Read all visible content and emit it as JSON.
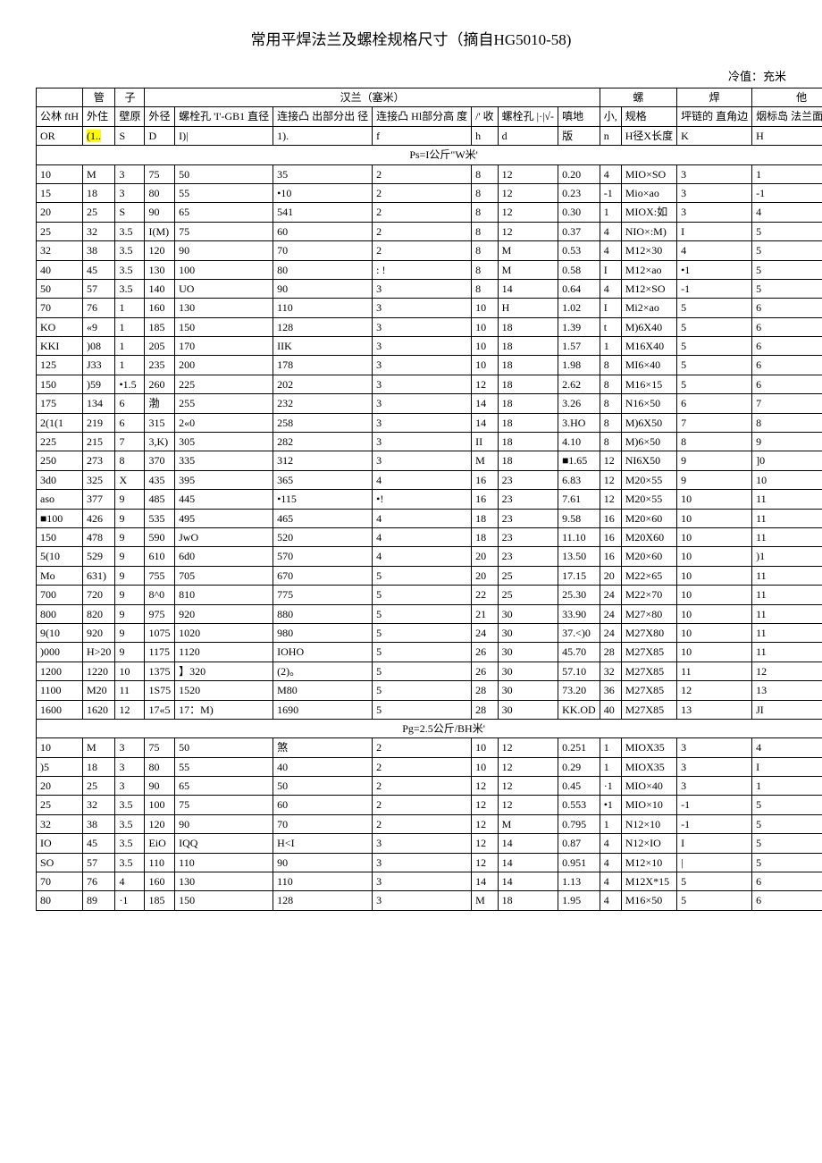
{
  "title": "常用平焊法兰及螺栓规格尺寸（摘自HG5010-58)",
  "unit_label": "冷值：充米",
  "group_headers": {
    "g1": "管",
    "g2": "子",
    "g3": "汉兰（塞米）",
    "g4": "螺",
    "g5": "焊",
    "g6": "他"
  },
  "col_headers": {
    "c1": "公林\nftH",
    "c2": "外住",
    "c3": "壁原",
    "c4": "外径",
    "c5": "螺栓孔\n'I'-GB1\n直径",
    "c6": "连接凸\n出部分出\n径",
    "c7": "连接凸\nHl部分高\n度",
    "c8": "/' 收",
    "c9": "螺栓孔\n|·|√-",
    "c10": "嗔地",
    "c11": "小,",
    "c12": "规格",
    "c13": "坪链的\n直角边",
    "c14": "烟标岛\n法兰面距\n离"
  },
  "sym_headers": {
    "s1": "OR",
    "s2": "(1..",
    "s3": "S",
    "s4": "D",
    "s5": "I)|",
    "s6": "1).",
    "s7": "f",
    "s8": "h",
    "s9": "d",
    "s10": "版",
    "s11": "n",
    "s12": "H径X长度",
    "s13": "K",
    "s14": "H"
  },
  "section1": "Ps=I公斤\"W米'",
  "section2": "Pg=2.5公斤/BH米'",
  "rows1": [
    [
      "10",
      "M",
      "3",
      "75",
      "50",
      "35",
      "2",
      "8",
      "12",
      "0.20",
      "4",
      "MIO×SO",
      "3",
      "1"
    ],
    [
      "15",
      "18",
      "3",
      "80",
      "55",
      "•10",
      "2",
      "8",
      "12",
      "0.23",
      "-1",
      "Mio×ao",
      "3",
      "-1"
    ],
    [
      "20",
      "25",
      "S",
      "90",
      "65",
      "541",
      "2",
      "8",
      "12",
      "0.30",
      "1",
      "MIOX:如",
      "3",
      "4"
    ],
    [
      "25",
      "32",
      "3.5",
      "I(M)",
      "75",
      "60",
      "2",
      "8",
      "12",
      "0.37",
      "4",
      "NIO×:M)",
      "I",
      "5"
    ],
    [
      "32",
      "38",
      "3.5",
      "120",
      "90",
      "70",
      "2",
      "8",
      "M",
      "0.53",
      "4",
      "M12×30",
      "4",
      "5"
    ],
    [
      "40",
      "45",
      "3.5",
      "130",
      "100",
      "80",
      ": !",
      "8",
      "M",
      "0.58",
      "I",
      "M12×ao",
      "•1",
      "5"
    ],
    [
      "50",
      "57",
      "3.5",
      "140",
      "UO",
      "90",
      "3",
      "8",
      "14",
      "0.64",
      "4",
      "M12×SO",
      "-1",
      "5"
    ],
    [
      "70",
      "76",
      "1",
      "160",
      "130",
      "110",
      "3",
      "10",
      "H",
      "1.02",
      "I",
      "Mi2×ao",
      "5",
      "6"
    ],
    [
      "KO",
      "«9",
      "1",
      "185",
      "150",
      "128",
      "3",
      "10",
      "18",
      "1.39",
      "t",
      "M)6X40",
      "5",
      "6"
    ],
    [
      "KKI",
      ")08",
      "1",
      "205",
      "170",
      "IIK",
      "3",
      "10",
      "18",
      "1.57",
      "1",
      "M16X40",
      "5",
      "6"
    ],
    [
      "125",
      "J33",
      "1",
      "235",
      "200",
      "178",
      "3",
      "10",
      "18",
      "1.98",
      "8",
      "MI6×40",
      "5",
      "6"
    ],
    [
      "150",
      ")59",
      "•1.5",
      "260",
      "225",
      "202",
      "3",
      "12",
      "18",
      "2.62",
      "8",
      "M16×15",
      "5",
      "6"
    ],
    [
      "175",
      "134",
      "6",
      "渤",
      "255",
      "232",
      "3",
      "14",
      "18",
      "3.26",
      "8",
      "N16×50",
      "6",
      "7"
    ],
    [
      "2(1(1",
      "219",
      "6",
      "315",
      "2«0",
      "258",
      "3",
      "14",
      "18",
      "3.HO",
      "8",
      "M)6X50",
      "7",
      "8"
    ],
    [
      "225",
      "215",
      "7",
      "3,K)",
      "305",
      "282",
      "3",
      "II",
      "18",
      "4.10",
      "8",
      "M)6×50",
      "8",
      "9"
    ],
    [
      "250",
      "273",
      "8",
      "370",
      "335",
      "312",
      "3",
      "M",
      "18",
      "■1.65",
      "12",
      "NI6X50",
      "9",
      "]0"
    ],
    [
      "3d0",
      "325",
      "X",
      "435",
      "395",
      "365",
      "4",
      "16",
      "23",
      "6.83",
      "12",
      "M20×55",
      "9",
      "10"
    ],
    [
      "aso",
      "377",
      "9",
      "485",
      "445",
      "•115",
      "•!",
      "16",
      "23",
      "7.61",
      "12",
      "M20×55",
      "10",
      "11"
    ],
    [
      "■100",
      "426",
      "9",
      "535",
      "495",
      "465",
      "4",
      "18",
      "23",
      "9.58",
      "16",
      "M20×60",
      "10",
      "11"
    ],
    [
      "150",
      "478",
      "9",
      "590",
      "JwO",
      "520",
      "4",
      "18",
      "23",
      "11.10",
      "16",
      "M20X60",
      "10",
      "11"
    ],
    [
      "5(10",
      "529",
      "9",
      "610",
      "6d0",
      "570",
      "4",
      "20",
      "23",
      "13.50",
      "16",
      "M20×60",
      "10",
      ")1"
    ],
    [
      "Mo",
      "631)",
      "9",
      "755",
      "705",
      "670",
      "5",
      "20",
      "25",
      "17.15",
      "20",
      "M22×65",
      "10",
      "11"
    ],
    [
      "700",
      "720",
      "9",
      "8^0",
      "810",
      "775",
      "5",
      "22",
      "25",
      "25.30",
      "24",
      "M22×70",
      "10",
      "11"
    ],
    [
      "800",
      "820",
      "9",
      "975",
      "920",
      "880",
      "5",
      "21",
      "30",
      "33.90",
      "24",
      "M27×80",
      "10",
      "11"
    ],
    [
      "9(10",
      "920",
      "9",
      "1075",
      "1020",
      "980",
      "5",
      "24",
      "30",
      "37.<)0",
      "24",
      "M27X80",
      "10",
      "11"
    ],
    [
      ")000",
      "H>20",
      "9",
      "1175",
      "1120",
      "IOHO",
      "5",
      "26",
      "30",
      "45.70",
      "28",
      "M27X85",
      "10",
      "11"
    ],
    [
      "1200",
      "1220",
      "10",
      "1375",
      "】320",
      "(2)。",
      "5",
      "26",
      "30",
      "57.10",
      "32",
      "M27X85",
      "11",
      "12"
    ],
    [
      "1100",
      "M20",
      "11",
      "1S75",
      "1520",
      "M80",
      "5",
      "28",
      "30",
      "73.20",
      "36",
      "M27X85",
      "12",
      "13"
    ],
    [
      "1600",
      "1620",
      "12",
      "17«5",
      "17：M)",
      "1690",
      "5",
      "28",
      "30",
      "KK.OD",
      "40",
      "M27X85",
      "13",
      "JI"
    ]
  ],
  "rows2": [
    [
      "10",
      "M",
      "3",
      "75",
      "50",
      "煞",
      "2",
      "10",
      "12",
      "0.251",
      "1",
      "MIOX35",
      "3",
      "4"
    ],
    [
      ")5",
      "18",
      "3",
      "80",
      "55",
      "40",
      "2",
      "10",
      "12",
      "0.29",
      "1",
      "MIOX35",
      "3",
      "I"
    ],
    [
      "20",
      "25",
      "3",
      "90",
      "65",
      "50",
      "2",
      "12",
      "12",
      "0.45",
      "·1",
      "MIO×40",
      "3",
      "1"
    ],
    [
      "25",
      "32",
      "3.5",
      "100",
      "75",
      "60",
      "2",
      "12",
      "12",
      "0.553",
      "•1",
      "MIO×10",
      "-1",
      "5"
    ],
    [
      "32",
      "38",
      "3.5",
      "120",
      "90",
      "70",
      "2",
      "12",
      "M",
      "0.795",
      "1",
      "N12×10",
      "-1",
      "5"
    ],
    [
      "IO",
      "45",
      "3.5",
      "EiO",
      "IQQ",
      "H<I",
      "3",
      "12",
      "14",
      "0.87",
      "4",
      "N12×IO",
      "I",
      "5"
    ],
    [
      "SO",
      "57",
      "3.5",
      "110",
      "110",
      "90",
      "3",
      "12",
      "14",
      "0.951",
      "4",
      "M12×10",
      "|",
      "5"
    ],
    [
      "70",
      "76",
      "4",
      "160",
      "130",
      "110",
      "3",
      "14",
      "14",
      "1.13",
      "4",
      "M12X*15",
      "5",
      "6"
    ],
    [
      "80",
      "89",
      "·1",
      "185",
      "150",
      "128",
      "3",
      "M",
      "18",
      "1.95",
      "4",
      "M16×50",
      "5",
      "6"
    ]
  ]
}
